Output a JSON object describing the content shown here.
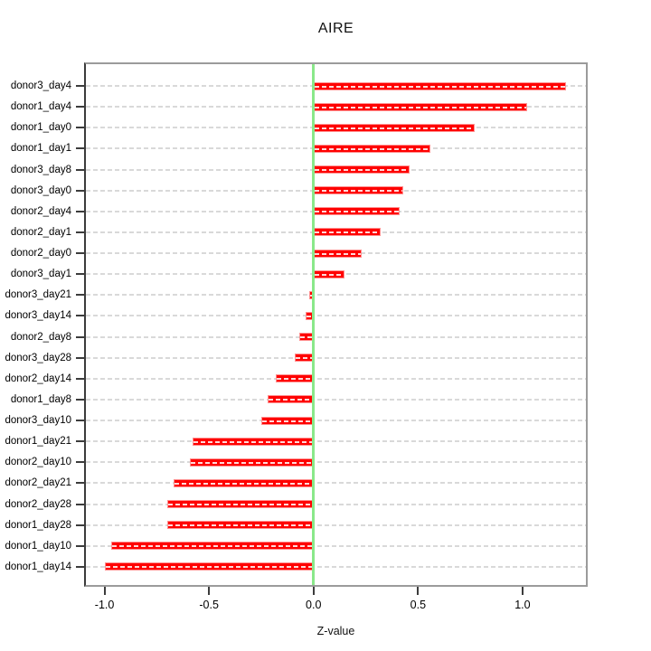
{
  "chart_data": {
    "type": "bar",
    "orientation": "horizontal",
    "title": "AIRE",
    "xlabel": "Z-value",
    "ylabel": "",
    "categories": [
      "donor3_day4",
      "donor1_day4",
      "donor1_day0",
      "donor1_day1",
      "donor3_day8",
      "donor3_day0",
      "donor2_day4",
      "donor2_day1",
      "donor2_day0",
      "donor3_day1",
      "donor3_day21",
      "donor3_day14",
      "donor2_day8",
      "donor3_day28",
      "donor2_day14",
      "donor1_day8",
      "donor3_day10",
      "donor1_day21",
      "donor2_day10",
      "donor2_day21",
      "donor2_day28",
      "donor1_day28",
      "donor1_day10",
      "donor1_day14"
    ],
    "values": [
      1.21,
      1.02,
      0.77,
      0.56,
      0.46,
      0.43,
      0.41,
      0.32,
      0.23,
      0.15,
      -0.02,
      -0.04,
      -0.07,
      -0.09,
      -0.18,
      -0.22,
      -0.25,
      -0.58,
      -0.59,
      -0.67,
      -0.7,
      -0.7,
      -0.97,
      -1.0
    ],
    "xlim": [
      -1.089,
      1.303
    ],
    "x_tick_values": [
      -1.0,
      -0.5,
      0.0,
      0.5,
      1.0
    ],
    "x_tick_labels": [
      "-1.0",
      "-0.5",
      "0.0",
      "0.5",
      "1.0"
    ],
    "grid": "horizontal dashed line per category",
    "legend": "none",
    "zero_reference_line": true,
    "colors": {
      "bar": "#ff0000",
      "bar_edge": "#ff9090",
      "zero_line": "#8ae88a",
      "grid": "#d9d9d9",
      "frame": "#9b9b9b",
      "axis": "#3c3c3c",
      "text": "#000000",
      "background": "#ffffff"
    }
  }
}
